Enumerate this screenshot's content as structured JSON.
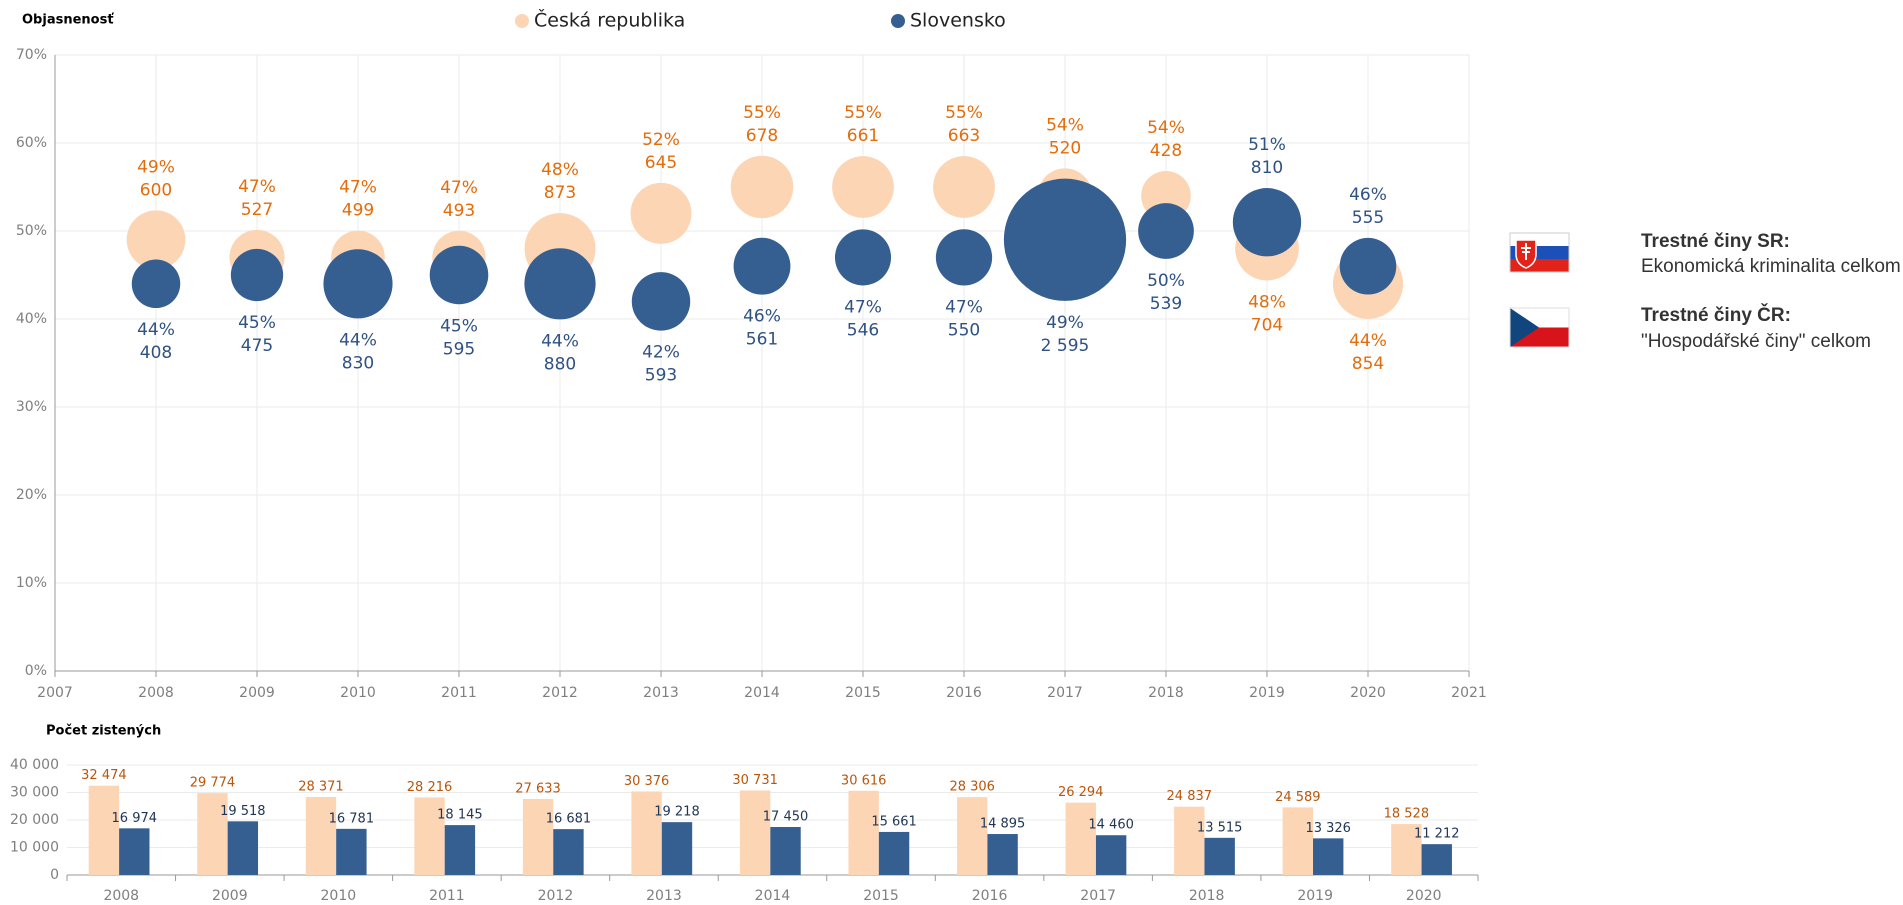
{
  "chart_data": [
    {
      "type": "bubble",
      "title": "Objasnenosť",
      "x": [
        2008,
        2009,
        2010,
        2011,
        2012,
        2013,
        2014,
        2015,
        2016,
        2017,
        2018,
        2019,
        2020
      ],
      "xlim": [
        2007,
        2021
      ],
      "xticks": [
        2007,
        2008,
        2009,
        2010,
        2011,
        2012,
        2013,
        2014,
        2015,
        2016,
        2017,
        2018,
        2019,
        2020,
        2021
      ],
      "ylim": [
        0,
        70
      ],
      "yticks": [
        {
          "value": 0,
          "label": "0%"
        },
        {
          "value": 10,
          "label": "10%"
        },
        {
          "value": 20,
          "label": "20%"
        },
        {
          "value": 30,
          "label": "30%"
        },
        {
          "value": 40,
          "label": "40%"
        },
        {
          "value": 50,
          "label": "50%"
        },
        {
          "value": 60,
          "label": "60%"
        },
        {
          "value": 70,
          "label": "70%"
        }
      ],
      "grid": true,
      "series": [
        {
          "name": "Česká republika",
          "color": "#fcd5b5",
          "label_color": "#e46c0a",
          "values": [
            49,
            47,
            47,
            47,
            48,
            52,
            55,
            55,
            55,
            54,
            54,
            48,
            44
          ],
          "value_labels": [
            "49%",
            "47%",
            "47%",
            "47%",
            "48%",
            "52%",
            "55%",
            "55%",
            "55%",
            "54%",
            "54%",
            "48%",
            "44%"
          ],
          "sizes": [
            600,
            527,
            499,
            493,
            873,
            645,
            678,
            661,
            663,
            520,
            428,
            704,
            854
          ],
          "size_labels": [
            "600",
            "527",
            "499",
            "493",
            "873",
            "645",
            "678",
            "661",
            "663",
            "520",
            "428",
            "704",
            "854"
          ]
        },
        {
          "name": "Slovensko",
          "color": "#355f91",
          "label_color": "#2f5183",
          "values": [
            44,
            45,
            44,
            45,
            44,
            42,
            46,
            47,
            47,
            49,
            50,
            51,
            46
          ],
          "value_labels": [
            "44%",
            "45%",
            "44%",
            "45%",
            "44%",
            "42%",
            "46%",
            "47%",
            "47%",
            "49%",
            "50%",
            "51%",
            "46%"
          ],
          "sizes": [
            408,
            475,
            830,
            595,
            880,
            593,
            561,
            546,
            550,
            2595,
            539,
            810,
            555
          ],
          "size_labels": [
            "408",
            "475",
            "830",
            "595",
            "880",
            "593",
            "561",
            "546",
            "550",
            "2 595",
            "539",
            "810",
            "555"
          ]
        }
      ]
    },
    {
      "type": "bar",
      "title": "Počet zistených",
      "categories": [
        "2008",
        "2009",
        "2010",
        "2011",
        "2012",
        "2013",
        "2014",
        "2015",
        "2016",
        "2017",
        "2018",
        "2019",
        "2020"
      ],
      "ylim": [
        0,
        40000
      ],
      "yticks": [
        0,
        {
          "value": 10000,
          "label": "10 000"
        },
        {
          "value": 20000,
          "label": "20 000"
        },
        {
          "value": 30000,
          "label": "30 000"
        },
        {
          "value": 40000,
          "label": "40 000"
        }
      ],
      "grid": true,
      "series": [
        {
          "name": "Česká republika",
          "color": "#fcd5b5",
          "label_color": "#b8560c",
          "values": [
            32474,
            29774,
            28371,
            28216,
            27633,
            30376,
            30731,
            30616,
            28306,
            26294,
            24837,
            24589,
            18528
          ],
          "value_labels": [
            "32 474",
            "29 774",
            "28 371",
            "28 216",
            "27 633",
            "30 376",
            "30 731",
            "30 616",
            "28 306",
            "26 294",
            "24 837",
            "24 589",
            "18 528"
          ]
        },
        {
          "name": "Slovensko",
          "color": "#355f91",
          "label_color": "#1f3553",
          "values": [
            16974,
            19518,
            16781,
            18145,
            16681,
            19218,
            17450,
            15661,
            14895,
            14460,
            13515,
            13326,
            11212
          ],
          "value_labels": [
            "16 974",
            "19 518",
            "16 781",
            "18 145",
            "16 681",
            "19 218",
            "17 450",
            "15 661",
            "14 895",
            "14 460",
            "13 515",
            "13 326",
            "11 212"
          ]
        }
      ]
    }
  ],
  "legend_panel": {
    "items": [
      {
        "title": "Trestné činy SR:",
        "text": "Ekonomická kriminalita celkom"
      },
      {
        "title": "Trestné činy ČR:",
        "text": "\"Hospodářské činy\" celkom"
      }
    ]
  }
}
